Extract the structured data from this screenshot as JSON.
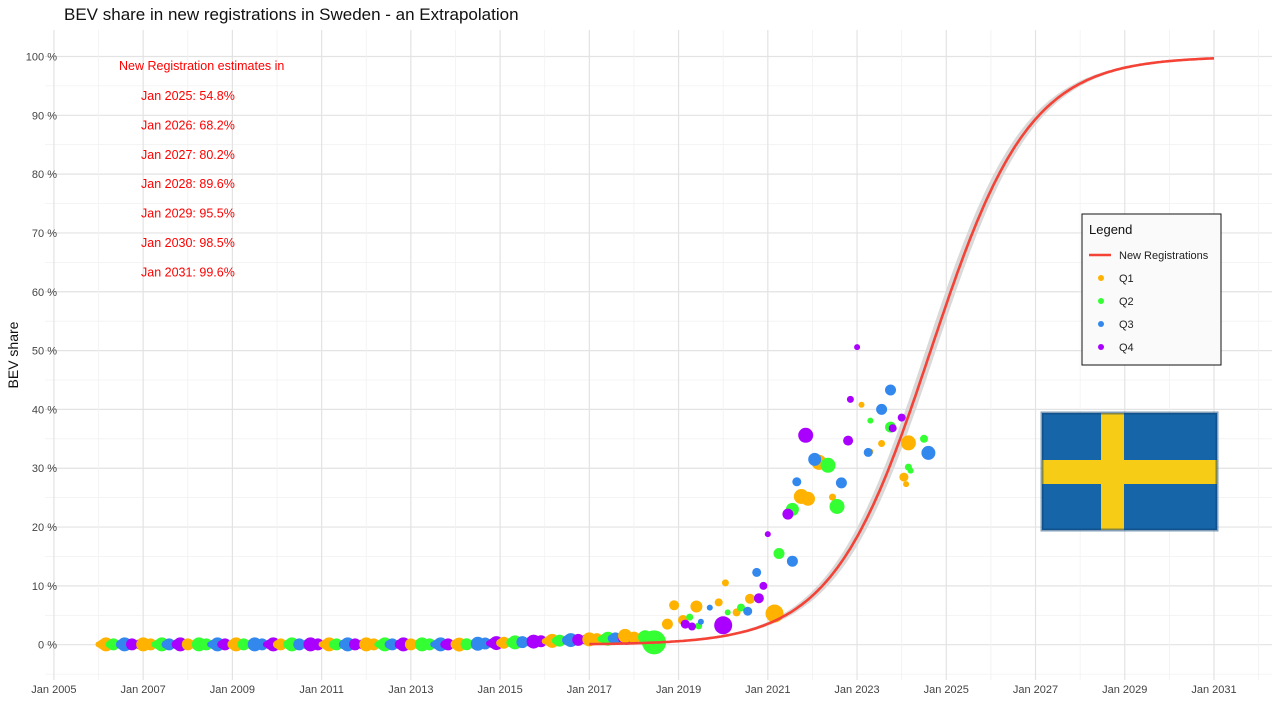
{
  "chart_data": {
    "type": "scatter",
    "title": "BEV share in new registrations in Sweden - an Extrapolation",
    "ylabel": "BEV share",
    "xlabel": "",
    "x_ticks": [
      "Jan 2005",
      "Jan 2007",
      "Jan 2009",
      "Jan 2011",
      "Jan 2013",
      "Jan 2015",
      "Jan 2017",
      "Jan 2019",
      "Jan 2021",
      "Jan 2023",
      "Jan 2025",
      "Jan 2027",
      "Jan 2029",
      "Jan 2031"
    ],
    "y_ticks": [
      "0 %",
      "10 %",
      "20 %",
      "30 %",
      "40 %",
      "50 %",
      "60 %",
      "70 %",
      "80 %",
      "90 %",
      "100 %"
    ],
    "xlim": [
      2004.8,
      2032.3
    ],
    "ylim": [
      -6,
      104.5
    ],
    "grid": true,
    "annotation": {
      "heading": "New Registration estimates in",
      "lines": [
        "Jan 2025: 54.8%",
        "Jan 2026: 68.2%",
        "Jan 2027: 80.2%",
        "Jan 2028: 89.6%",
        "Jan 2029: 95.5%",
        "Jan 2030: 98.5%",
        "Jan 2031: 99.6%"
      ]
    },
    "legend": {
      "title": "Legend",
      "position": "right",
      "entries": [
        {
          "label": "New Registrations",
          "type": "line",
          "color": "#f44336"
        },
        {
          "label": "Q1",
          "type": "point",
          "color": "#ffb300"
        },
        {
          "label": "Q2",
          "type": "point",
          "color": "#33ff33"
        },
        {
          "label": "Q3",
          "type": "point",
          "color": "#3388ee"
        },
        {
          "label": "Q4",
          "type": "point",
          "color": "#aa00ff"
        }
      ]
    },
    "fit": {
      "model": "logistic",
      "midpoint": 2024.65,
      "rate": 0.905,
      "band_halfwidth": 2.6,
      "color": "#f44336",
      "band_color": "#d9d9d9"
    },
    "quarter_colors": {
      "Q1": "#ffb300",
      "Q2": "#33ff33",
      "Q3": "#3388ee",
      "Q4": "#aa00ff"
    },
    "series": [
      {
        "name": "Q1",
        "points": [
          [
            2018.75,
            3.5
          ],
          [
            2018.9,
            6.7
          ],
          [
            2019.1,
            4.2
          ],
          [
            2019.4,
            6.5
          ],
          [
            2019.9,
            7.2
          ],
          [
            2020.05,
            10.5
          ],
          [
            2020.3,
            5.5
          ],
          [
            2020.6,
            7.8
          ],
          [
            2021.15,
            5.3
          ],
          [
            2021.75,
            25.2
          ],
          [
            2021.9,
            24.8
          ],
          [
            2022.15,
            31.0
          ],
          [
            2022.45,
            25.1
          ],
          [
            2023.1,
            40.8
          ],
          [
            2023.3,
            32.8
          ],
          [
            2023.55,
            34.2
          ],
          [
            2024.15,
            34.3
          ],
          [
            2024.05,
            28.5
          ],
          [
            2024.1,
            27.3
          ]
        ]
      },
      {
        "name": "Q2",
        "points": [
          [
            2018.3,
            0.5
          ],
          [
            2019.25,
            4.7
          ],
          [
            2019.45,
            3.2
          ],
          [
            2020.1,
            5.5
          ],
          [
            2020.4,
            6.3
          ],
          [
            2021.25,
            15.5
          ],
          [
            2021.55,
            23.0
          ],
          [
            2022.35,
            30.5
          ],
          [
            2022.55,
            23.5
          ],
          [
            2023.3,
            38.1
          ],
          [
            2023.75,
            37.0
          ],
          [
            2024.2,
            29.6
          ],
          [
            2024.5,
            35.0
          ],
          [
            2024.15,
            30.2
          ]
        ]
      },
      {
        "name": "Q3",
        "points": [
          [
            2019.5,
            3.9
          ],
          [
            2019.7,
            6.3
          ],
          [
            2020.55,
            5.7
          ],
          [
            2020.75,
            12.3
          ],
          [
            2021.55,
            14.2
          ],
          [
            2021.65,
            27.7
          ],
          [
            2022.05,
            31.5
          ],
          [
            2022.65,
            27.5
          ],
          [
            2023.25,
            32.7
          ],
          [
            2023.55,
            40.0
          ],
          [
            2023.75,
            43.3
          ],
          [
            2024.6,
            32.6
          ]
        ]
      },
      {
        "name": "Q4",
        "points": [
          [
            2019.15,
            3.5
          ],
          [
            2019.3,
            3.1
          ],
          [
            2019.95,
            3.3
          ],
          [
            2020.8,
            7.9
          ],
          [
            2020.9,
            10.0
          ],
          [
            2021.0,
            18.8
          ],
          [
            2021.45,
            22.2
          ],
          [
            2021.85,
            35.6
          ],
          [
            2022.8,
            34.7
          ],
          [
            2022.85,
            41.7
          ],
          [
            2023.0,
            50.6
          ],
          [
            2023.8,
            36.8
          ],
          [
            2024.0,
            38.6
          ]
        ]
      }
    ]
  }
}
